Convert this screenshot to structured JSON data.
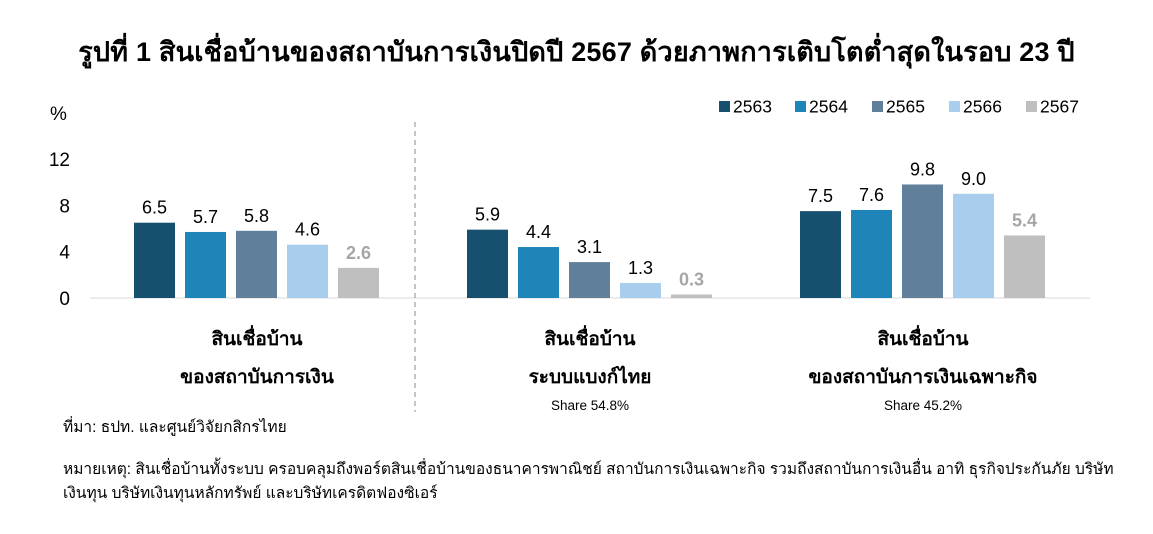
{
  "title": "รูปที่ 1 สินเชื่อบ้านของสถาบันการเงินปิดปี 2567 ด้วยภาพการเติบโตต่ำสุดในรอบ 23 ปี",
  "source": "ที่มา: ธปท. และศูนย์วิจัยกสิกรไทย",
  "remark": "หมายเหตุ: สินเชื่อบ้านทั้งระบบ ครอบคลุมถึงพอร์ตสินเชื่อบ้านของธนาคารพาณิชย์ สถาบันการเงินเฉพาะกิจ รวมถึงสถาบันการเงินอื่น อาทิ ธุรกิจประกันภัย บริษัทเงินทุน บริษัทเงินทุนหลักทรัพย์ และบริษัทเครดิตฟองซิเอร์",
  "chart_data": {
    "type": "bar",
    "ylabel": "%",
    "ylim": [
      0,
      12
    ],
    "yticks": [
      "0",
      "4",
      "8",
      "12"
    ],
    "grid": false,
    "legend_position": "top-right",
    "series_colors": [
      "#17506e",
      "#1f84b7",
      "#5f7f9a",
      "#a9cdec",
      "#bfbfbf"
    ],
    "series": [
      {
        "name": "2563",
        "values": [
          6.5,
          5.9,
          7.5
        ],
        "labels": [
          "6.5",
          "5.9",
          "7.5"
        ]
      },
      {
        "name": "2564",
        "values": [
          5.7,
          4.4,
          7.6
        ],
        "labels": [
          "5.7",
          "4.4",
          "7.6"
        ]
      },
      {
        "name": "2565",
        "values": [
          5.8,
          3.1,
          9.8
        ],
        "labels": [
          "5.8",
          "3.1",
          "9.8"
        ]
      },
      {
        "name": "2566",
        "values": [
          4.6,
          1.3,
          9.0
        ],
        "labels": [
          "4.6",
          "1.3",
          "9.0"
        ]
      },
      {
        "name": "2567",
        "values": [
          2.6,
          0.3,
          5.4
        ],
        "labels": [
          "2.6",
          "0.3",
          "5.4"
        ]
      }
    ],
    "categories": [
      {
        "lines": [
          "สินเชื่อบ้าน",
          "ของสถาบันการเงิน"
        ],
        "share": ""
      },
      {
        "lines": [
          "สินเชื่อบ้าน",
          "ระบบแบงก์ไทย"
        ],
        "share": "Share 54.8%"
      },
      {
        "lines": [
          "สินเชื่อบ้าน",
          "ของสถาบันการเงินเฉพาะกิจ"
        ],
        "share": "Share 45.2%"
      }
    ]
  }
}
